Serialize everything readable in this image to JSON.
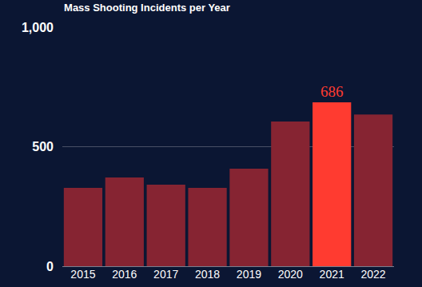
{
  "chart_data": {
    "type": "bar",
    "title": "Mass Shooting Incidents per Year",
    "categories": [
      "2015",
      "2016",
      "2017",
      "2018",
      "2019",
      "2020",
      "2021",
      "2022"
    ],
    "values": [
      328,
      371,
      341,
      328,
      408,
      605,
      686,
      635
    ],
    "value_labels": [
      null,
      null,
      null,
      null,
      null,
      null,
      "686",
      null
    ],
    "colors": [
      "#862432",
      "#862432",
      "#862432",
      "#862432",
      "#862432",
      "#862432",
      "#ff3b30",
      "#862432"
    ],
    "ylim": [
      0,
      1000
    ],
    "yticks": [
      0,
      500,
      {
        "value": 1000,
        "label": "1,000"
      }
    ],
    "grid": true
  }
}
